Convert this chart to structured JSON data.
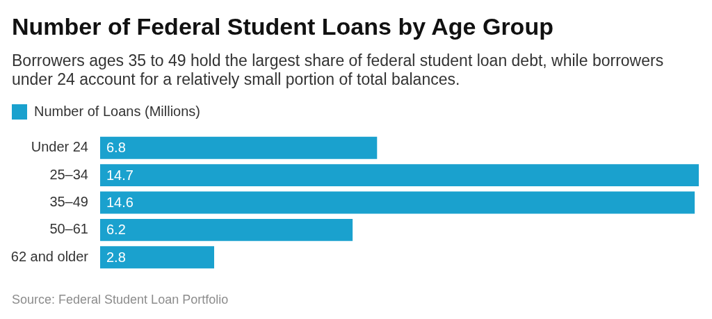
{
  "chart_data": {
    "type": "bar",
    "orientation": "horizontal",
    "title": "Number of Federal Student Loans by Age Group",
    "subtitle": "Borrowers ages 35 to 49 hold the largest share of federal student loan debt, while borrowers under 24 account for a relatively small portion of total balances.",
    "categories": [
      "Under 24",
      "25–34",
      "35–49",
      "50–61",
      "62 and older"
    ],
    "series": [
      {
        "name": "Number of Loans (Millions)",
        "color": "#1aa1ce",
        "values": [
          6.8,
          14.7,
          14.6,
          6.2,
          2.8
        ]
      }
    ],
    "data_labels": true,
    "legend": "top left",
    "grid": false,
    "tick_labels": "y",
    "annotations": [
      "Source: Federal Student Loan Portfolio"
    ]
  }
}
